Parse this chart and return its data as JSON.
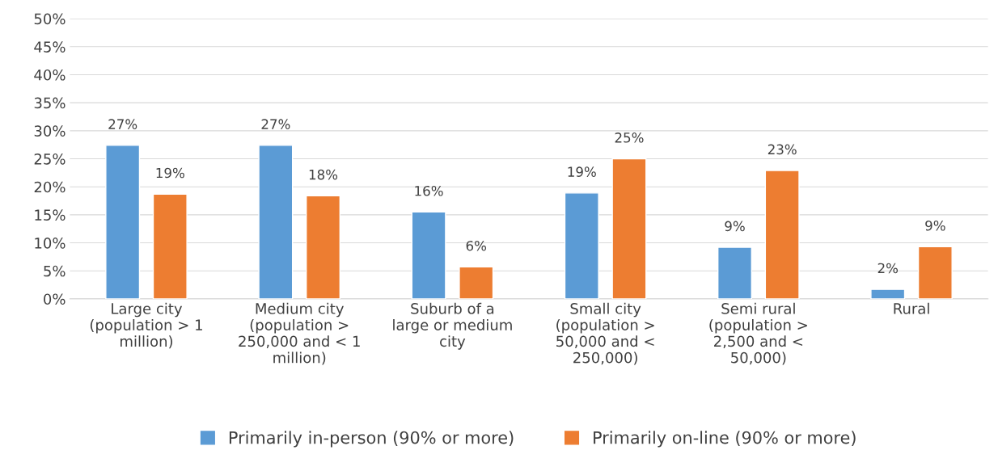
{
  "chart_data": {
    "type": "bar",
    "categories": [
      "Large city (population > 1 million)",
      "Medium city (population > 250,000 and < 1 million)",
      "Suburb of a large or medium city",
      "Small city (population > 50,000 and < 250,000)",
      "Semi rural (population > 2,500 and < 50,000)",
      "Rural"
    ],
    "series": [
      {
        "name": "Primarily in-person (90% or more)",
        "color": "#5b9bd5",
        "values": [
          27.4,
          27.4,
          15.5,
          18.9,
          9.2,
          1.7
        ],
        "value_labels": [
          "27%",
          "27%",
          "16%",
          "19%",
          "9%",
          "2%"
        ]
      },
      {
        "name": "Primarily on-line (90% or more)",
        "color": "#ed7d31",
        "values": [
          18.7,
          18.4,
          5.7,
          25.0,
          22.9,
          9.3
        ],
        "value_labels": [
          "19%",
          "18%",
          "6%",
          "25%",
          "23%",
          "9%"
        ]
      }
    ],
    "ylim": [
      0,
      50
    ],
    "yticks": [
      {
        "value": 0,
        "label": "0%"
      },
      {
        "value": 5,
        "label": "5%"
      },
      {
        "value": 10,
        "label": "10%"
      },
      {
        "value": 15,
        "label": "15%"
      },
      {
        "value": 20,
        "label": "20%"
      },
      {
        "value": 25,
        "label": "25%"
      },
      {
        "value": 30,
        "label": "30%"
      },
      {
        "value": 35,
        "label": "35%"
      },
      {
        "value": 40,
        "label": "40%"
      },
      {
        "value": 45,
        "label": "45%"
      },
      {
        "value": 50,
        "label": "50%"
      }
    ],
    "grid": "y",
    "legend": "bottom"
  }
}
